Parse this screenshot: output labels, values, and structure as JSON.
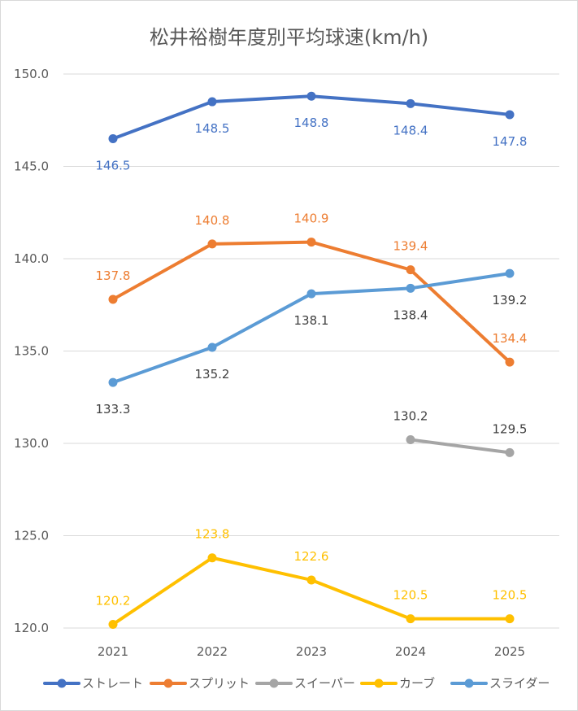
{
  "chart_data": {
    "type": "line",
    "title": "松井裕樹年度別平均球速(km/h)",
    "xlabel": "",
    "ylabel": "",
    "categories": [
      "2021",
      "2022",
      "2023",
      "2024",
      "2025"
    ],
    "ylim": [
      120.0,
      150.0
    ],
    "yticks": [
      "120.0",
      "125.0",
      "130.0",
      "135.0",
      "140.0",
      "145.0",
      "150.0"
    ],
    "grid": true,
    "legend_placement": "bottom",
    "series": [
      {
        "name": "ストレート",
        "color": "#4472c4",
        "values": [
          146.5,
          148.5,
          148.8,
          148.4,
          147.8
        ],
        "labels": [
          "146.5",
          "148.5",
          "148.8",
          "148.4",
          "147.8"
        ],
        "label_pos": [
          "below",
          "below",
          "below",
          "below",
          "below"
        ],
        "label_color": "#4472c4"
      },
      {
        "name": "スプリット",
        "color": "#ed7d31",
        "values": [
          137.8,
          140.8,
          140.9,
          139.4,
          134.4
        ],
        "labels": [
          "137.8",
          "140.8",
          "140.9",
          "139.4",
          "134.4"
        ],
        "label_pos": [
          "above",
          "above",
          "above",
          "above",
          "above"
        ],
        "label_color": "#ed7d31"
      },
      {
        "name": "スイーパー",
        "color": "#a5a5a5",
        "values": [
          null,
          null,
          null,
          130.2,
          129.5
        ],
        "labels": [
          null,
          null,
          null,
          "130.2",
          "129.5"
        ],
        "label_pos": [
          "above",
          "above",
          "above",
          "above",
          "above"
        ],
        "label_color": "#404040"
      },
      {
        "name": "カーブ",
        "color": "#ffc000",
        "values": [
          120.2,
          123.8,
          122.6,
          120.5,
          120.5
        ],
        "labels": [
          "120.2",
          "123.8",
          "122.6",
          "120.5",
          "120.5"
        ],
        "label_pos": [
          "above",
          "above",
          "above",
          "above",
          "above"
        ],
        "label_color": "#ffc000"
      },
      {
        "name": "スライダー",
        "color": "#5b9bd5",
        "values": [
          133.3,
          135.2,
          138.1,
          138.4,
          139.2
        ],
        "labels": [
          "133.3",
          "135.2",
          "138.1",
          "138.4",
          "139.2"
        ],
        "label_pos": [
          "below",
          "below",
          "below",
          "below",
          "below"
        ],
        "label_color": "#404040"
      }
    ]
  }
}
